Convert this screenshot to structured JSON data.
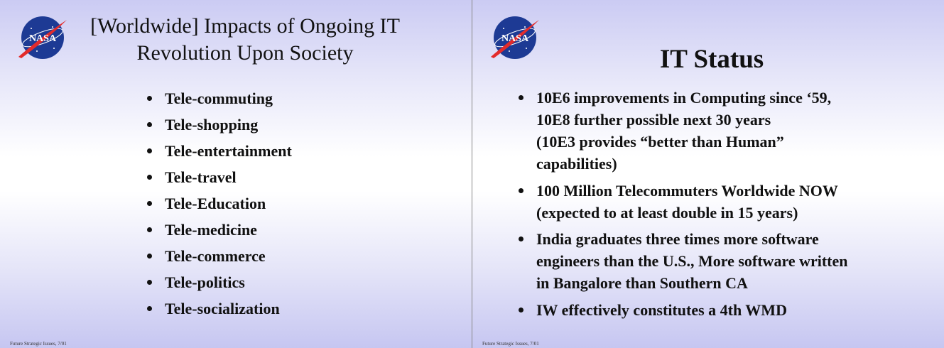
{
  "slides": [
    {
      "logo_text": "NASA",
      "title": [
        "[Worldwide] Impacts of Ongoing IT",
        "Revolution Upon Society"
      ],
      "bullets": [
        [
          "Tele-commuting"
        ],
        [
          "Tele-shopping"
        ],
        [
          "Tele-entertainment"
        ],
        [
          "Tele-travel"
        ],
        [
          "Tele-Education"
        ],
        [
          "Tele-medicine"
        ],
        [
          "Tele-commerce"
        ],
        [
          "Tele-politics"
        ],
        [
          "Tele-socialization"
        ]
      ],
      "footer": "Future Strategic Issues, 7/01"
    },
    {
      "logo_text": "NASA",
      "title": [
        "IT Status"
      ],
      "bullets": [
        [
          "10E6 improvements in Computing since ‘59,",
          "10E8 further possible next 30 years",
          "(10E3 provides “better than Human”",
          "capabilities)"
        ],
        [
          "100 Million Telecommuters Worldwide NOW",
          "(expected to at least double in 15 years)"
        ],
        [
          "India graduates three times more software",
          "engineers than the U.S., More software written",
          "in Bangalore than Southern CA"
        ],
        [
          "IW effectively constitutes a 4th WMD"
        ]
      ],
      "footer": "Future Strategic Issues, 7/01"
    }
  ]
}
